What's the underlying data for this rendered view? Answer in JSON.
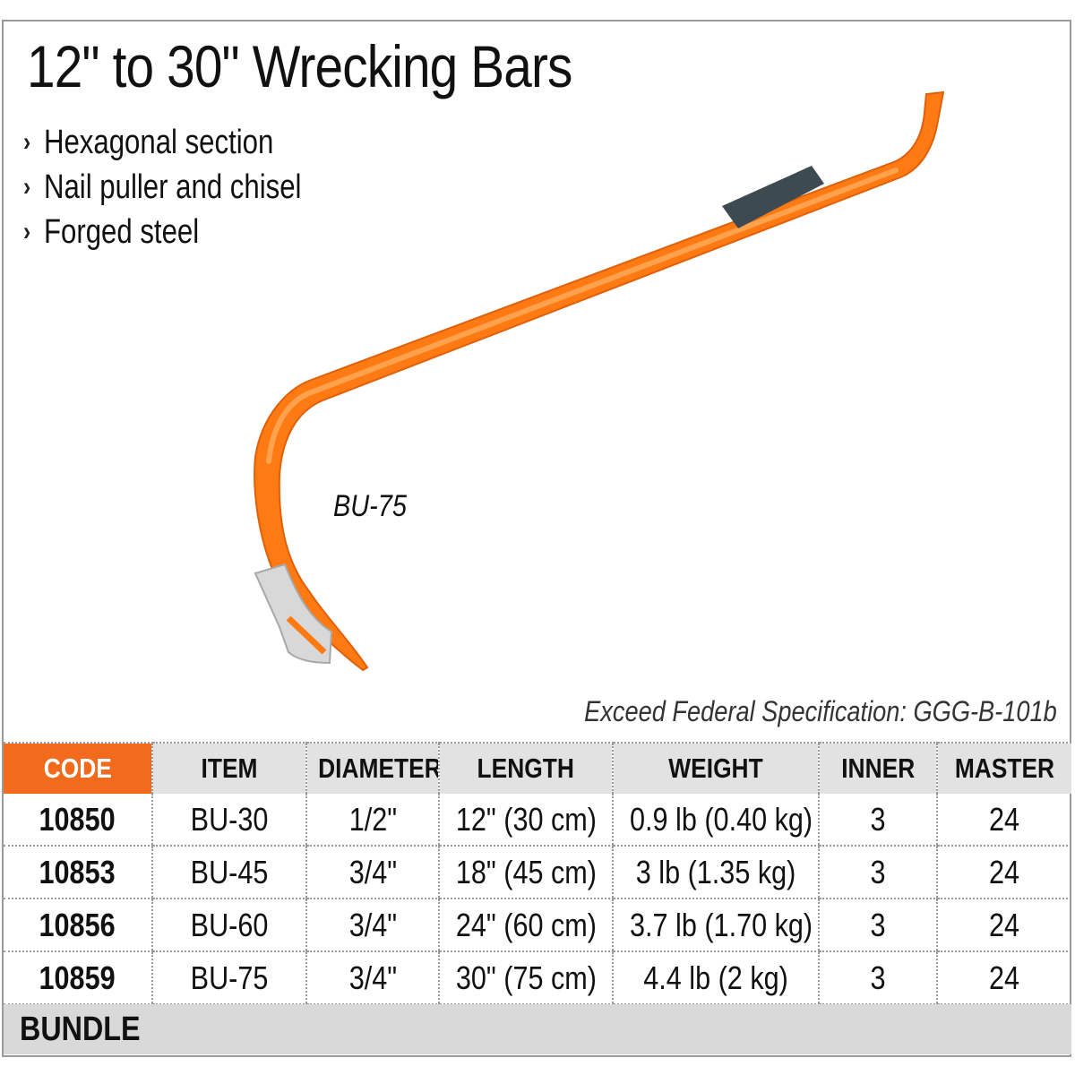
{
  "title": "12\" to 30\" Wrecking Bars",
  "features": [
    "Hexagonal section",
    "Nail puller and chisel",
    "Forged steel"
  ],
  "model_label": "BU-75",
  "spec_note": "Exceed Federal Specification: GGG-B-101b",
  "colors": {
    "accent": "#f26b1d",
    "bar_orange": "#ff7a12",
    "grip": "#3d4a52",
    "header_bg": "#e2e2e2",
    "bundle_bg": "#d9d9d9"
  },
  "table": {
    "headers": [
      "CODE",
      "ITEM",
      "DIAMETER",
      "LENGTH",
      "WEIGHT",
      "INNER",
      "MASTER"
    ],
    "rows": [
      [
        "10850",
        "BU-30",
        "1/2\"",
        "12\" (30 cm)",
        "0.9 lb (0.40 kg)",
        "3",
        "24"
      ],
      [
        "10853",
        "BU-45",
        "3/4\"",
        "18\" (45 cm)",
        "3 lb (1.35 kg)",
        "3",
        "24"
      ],
      [
        "10856",
        "BU-60",
        "3/4\"",
        "24\" (60 cm)",
        "3.7 lb (1.70 kg)",
        "3",
        "24"
      ],
      [
        "10859",
        "BU-75",
        "3/4\"",
        "30\" (75 cm)",
        "4.4 lb (2 kg)",
        "3",
        "24"
      ]
    ]
  },
  "footer": "BUNDLE"
}
